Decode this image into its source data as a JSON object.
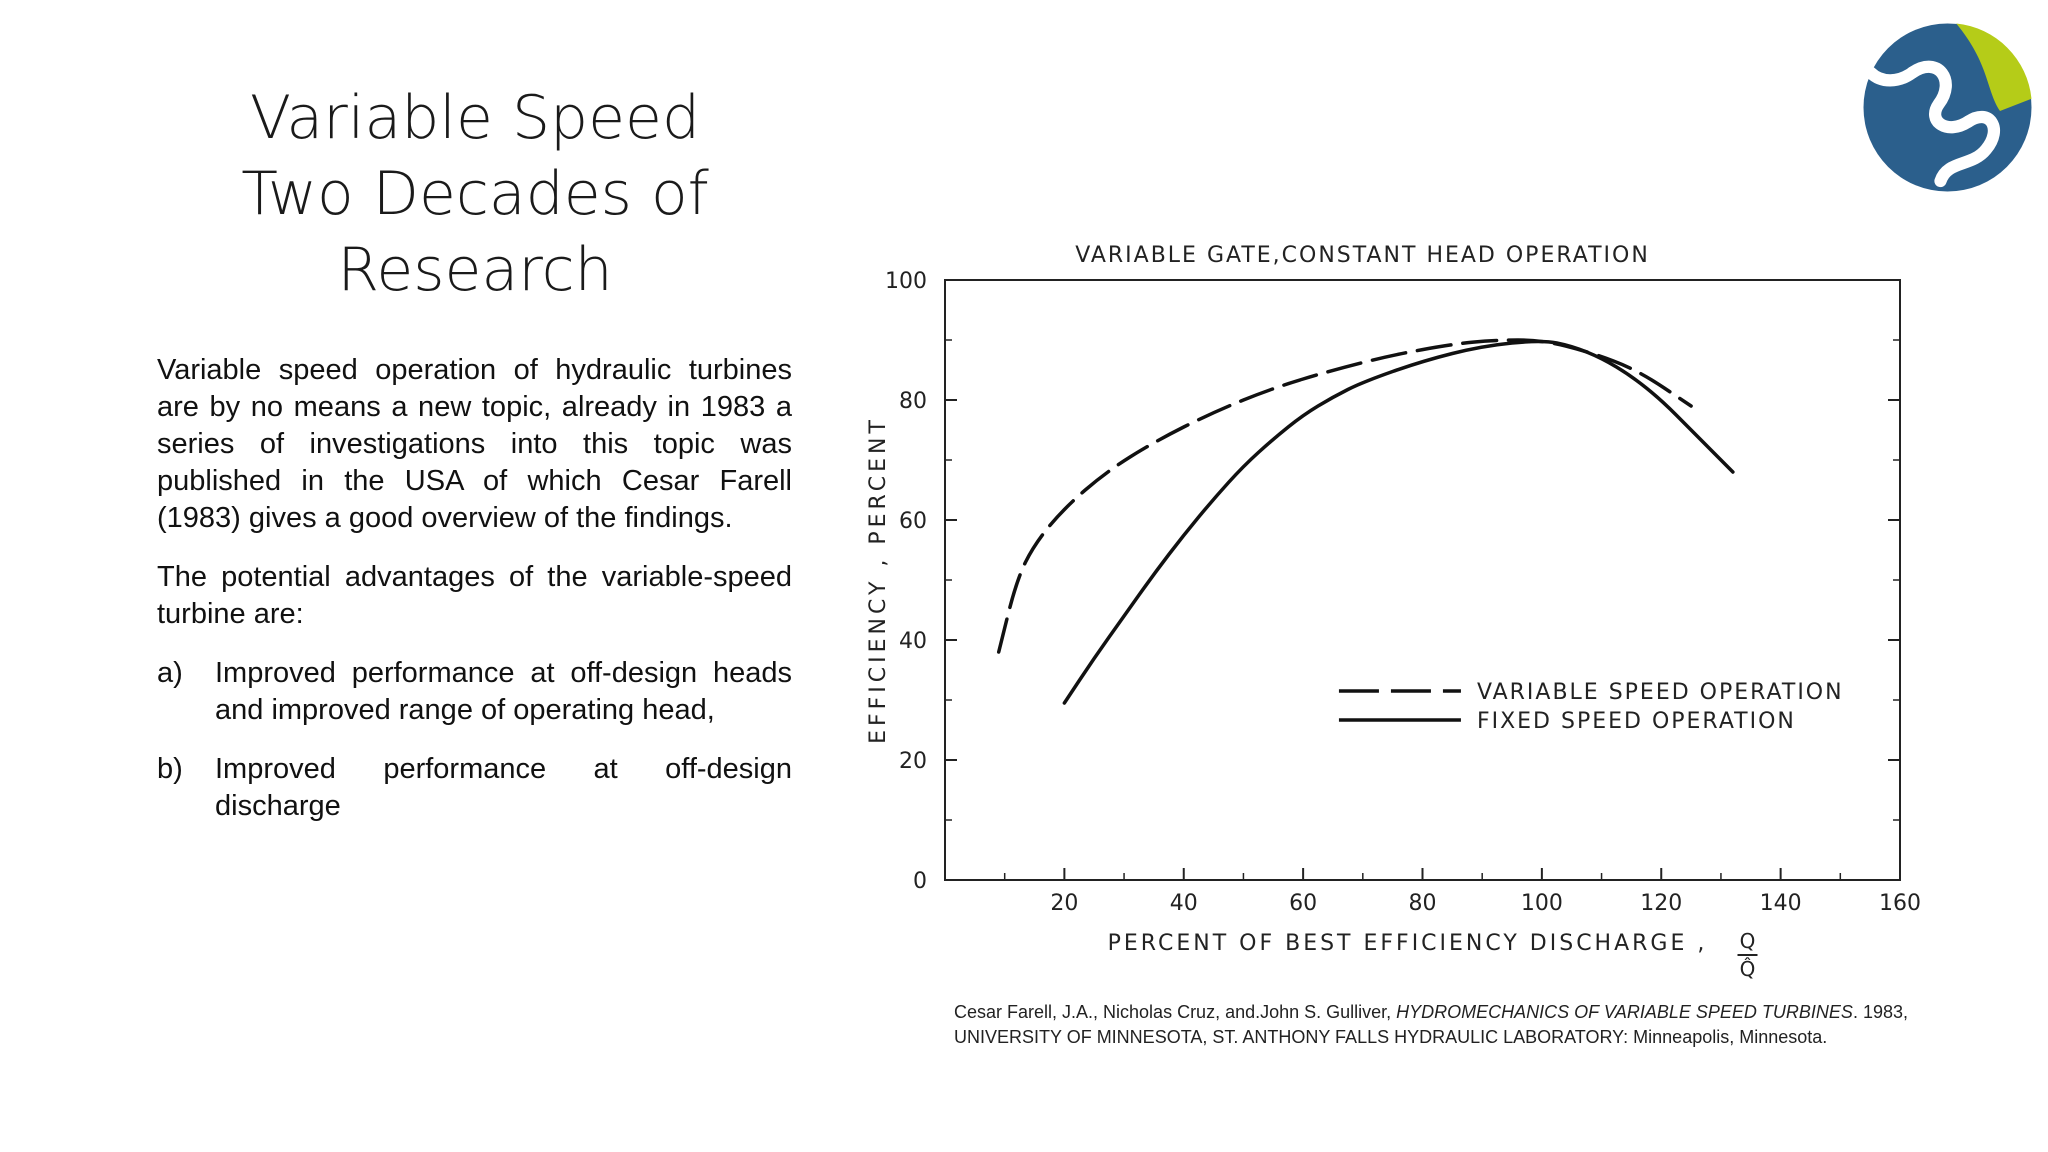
{
  "slide": {
    "title_lines": [
      "Variable Speed",
      "Two Decades of",
      "Research"
    ],
    "paragraph1": "Variable speed operation of hydraulic turbines are by no means a new topic, already in 1983 a series of investigations into this topic was published in the USA of which Cesar Farell (1983) gives a good overview of the findings.",
    "paragraph2": "The potential advantages of the variable-speed turbine are:",
    "list": [
      {
        "marker": "a)",
        "text": "Improved performance at off-design heads and improved range of operating head,"
      },
      {
        "marker": "b)",
        "text": "Improved performance at off-design discharge"
      }
    ],
    "citation": {
      "authors": "Cesar Farell, J.A., Nicholas Cruz, and.John S. Gulliver, ",
      "title": "HYDROMECHANICS OF VARIABLE SPEED TURBINES",
      "rest": ". 1983, UNIVERSITY OF MINNESOTA, ST. ANTHONY FALLS HYDRAULIC LABORATORY: Minneapolis, Minnesota."
    },
    "logo": {
      "name": "logo-icon",
      "colors": [
        "#2b5f8c",
        "#b5cc18"
      ]
    }
  },
  "chart_data": {
    "type": "line",
    "title": "VARIABLE GATE,CONSTANT HEAD OPERATION",
    "xlabel": "PERCENT OF BEST EFFICIENCY DISCHARGE ,",
    "xlabel_fraction": {
      "num": "Q",
      "den": "Q̂"
    },
    "ylabel": "EFFICIENCY , PERCENT",
    "xlim": [
      0,
      160
    ],
    "ylim": [
      0,
      100
    ],
    "xticks": [
      20,
      40,
      60,
      80,
      100,
      120,
      140,
      160
    ],
    "yticks": [
      0,
      20,
      40,
      60,
      80,
      100
    ],
    "legend_position": "lower-right",
    "series": [
      {
        "name": "VARIABLE SPEED OPERATION",
        "style": "dashed",
        "x": [
          9,
          12,
          15,
          20,
          27,
          35,
          45,
          55,
          65,
          75,
          85,
          92,
          100,
          108,
          116,
          125
        ],
        "y": [
          38,
          50,
          56,
          62,
          68,
          73,
          78,
          82,
          85,
          87.5,
          89.3,
          90,
          90,
          88,
          85,
          79
        ]
      },
      {
        "name": "FIXED SPEED OPERATION",
        "style": "solid",
        "x": [
          20,
          25,
          30,
          35,
          40,
          45,
          50,
          55,
          60,
          65,
          70,
          80,
          90,
          100,
          105,
          110,
          115,
          120,
          125,
          130,
          132
        ],
        "y": [
          29.5,
          37,
          44,
          51,
          57.5,
          63.5,
          69,
          73.5,
          77.5,
          80.5,
          83,
          86.5,
          89,
          90,
          89,
          87,
          84,
          80,
          75,
          70,
          68
        ]
      }
    ]
  }
}
